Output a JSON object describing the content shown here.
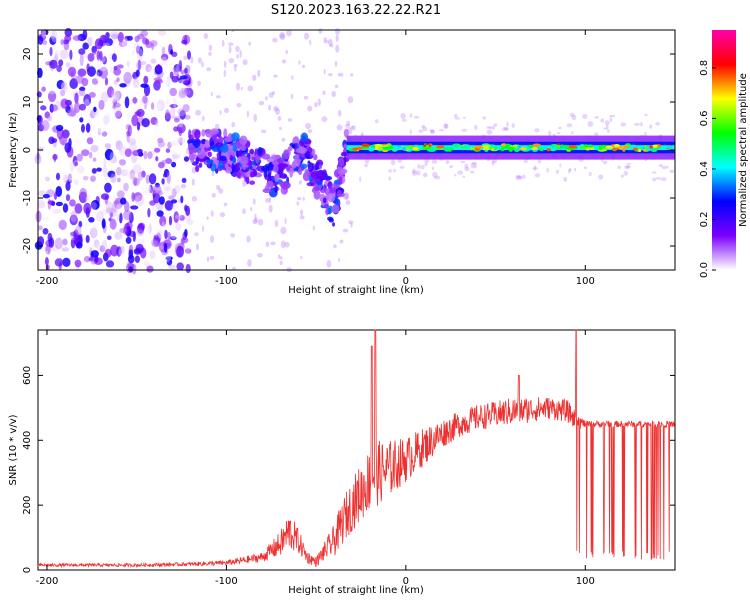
{
  "figure": {
    "title": "S120.2023.163.22.22.R21"
  },
  "chart_data": [
    {
      "type": "heatmap",
      "xlabel": "Height of straight line (km)",
      "ylabel": "Frequency (Hz)",
      "xlim": [
        -205,
        150
      ],
      "ylim": [
        -25,
        25
      ],
      "xticks": [
        -200,
        -100,
        0,
        100
      ],
      "yticks": [
        -20,
        -10,
        0,
        10,
        20
      ],
      "colorbar": {
        "label": "Normalized spectral amplitude",
        "range": [
          0,
          0.95
        ],
        "ticks": [
          0.0,
          0.2,
          0.4,
          0.6,
          0.8
        ],
        "colormap": [
          "#ffffff",
          "#7b00ff",
          "#0000ff",
          "#00ffff",
          "#00ff00",
          "#ffff00",
          "#ff0000",
          "#ff00aa"
        ]
      },
      "structures": {
        "noise_region_x": [
          -205,
          -120
        ],
        "transition_region_x": [
          -120,
          -33
        ],
        "line_region_x": [
          -33,
          150
        ],
        "line_center_hz": 0.5,
        "line_peak_amplitude": 0.85,
        "dip_minimum": {
          "x": -40,
          "y": -12
        }
      }
    },
    {
      "type": "line",
      "xlabel": "Height of straight line (km)",
      "ylabel": "SNR (10 * v/v)",
      "xlim": [
        -205,
        150
      ],
      "ylim": [
        0,
        740
      ],
      "xticks": [
        -200,
        -100,
        0,
        100
      ],
      "yticks": [
        0,
        200,
        400,
        600
      ],
      "series": [
        {
          "color": "#ee3030",
          "envelope": {
            "x": [
              -205,
              -150,
              -120,
              -100,
              -90,
              -80,
              -70,
              -65,
              -60,
              -55,
              -50,
              -45,
              -40,
              -35,
              -30,
              -25,
              -20,
              -15,
              -10,
              0,
              10,
              20,
              30,
              40,
              50,
              60,
              70,
              80,
              90,
              95,
              100,
              110,
              120,
              130,
              140,
              150
            ],
            "y": [
              15,
              15,
              18,
              22,
              30,
              40,
              80,
              120,
              90,
              40,
              25,
              60,
              90,
              150,
              200,
              240,
              280,
              300,
              310,
              340,
              380,
              420,
              450,
              470,
              480,
              490,
              495,
              500,
              490,
              460,
              450,
              450,
              450,
              450,
              450,
              450
            ],
            "jitter": [
              5,
              5,
              6,
              8,
              12,
              15,
              40,
              60,
              40,
              20,
              15,
              30,
              50,
              70,
              80,
              90,
              100,
              100,
              90,
              70,
              60,
              45,
              40,
              40,
              40,
              45,
              40,
              35,
              35,
              30,
              10,
              10,
              10,
              10,
              10,
              10
            ]
          },
          "spikes": [
            {
              "x": -17,
              "y": 740
            },
            {
              "x": -19,
              "y": 690
            },
            {
              "x": 95,
              "y": 740
            },
            {
              "x": 63,
              "y": 600
            }
          ]
        }
      ]
    }
  ]
}
